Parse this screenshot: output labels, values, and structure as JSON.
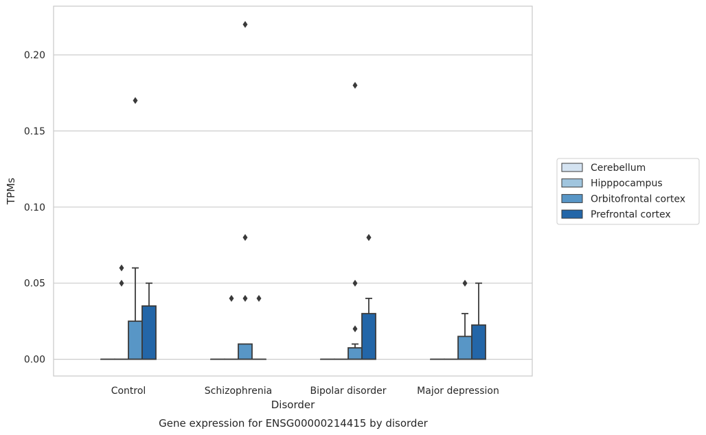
{
  "chart_data": {
    "type": "box",
    "caption": "Gene expression for ENSG00000214415 by disorder",
    "xlabel": "Disorder",
    "ylabel": "TPMs",
    "ylim": [
      -0.011,
      0.232
    ],
    "yticks": [
      0.0,
      0.05,
      0.1,
      0.15,
      0.2
    ],
    "ytick_labels": [
      "0.00",
      "0.05",
      "0.10",
      "0.15",
      "0.20"
    ],
    "grid": "horizontal",
    "legend_position": "right",
    "categories": [
      "Control",
      "Schizophrenia",
      "Bipolar disorder",
      "Major depression"
    ],
    "series": [
      {
        "name": "Cerebellum",
        "color": "#d4e3f1",
        "boxes": [
          {
            "q1": 0,
            "median": 0,
            "q3": 0,
            "whisker_low": 0,
            "whisker_high": 0,
            "outliers": []
          },
          {
            "q1": 0,
            "median": 0,
            "q3": 0,
            "whisker_low": 0,
            "whisker_high": 0,
            "outliers": []
          },
          {
            "q1": 0,
            "median": 0,
            "q3": 0,
            "whisker_low": 0,
            "whisker_high": 0,
            "outliers": []
          },
          {
            "q1": 0,
            "median": 0,
            "q3": 0,
            "whisker_low": 0,
            "whisker_high": 0,
            "outliers": []
          }
        ]
      },
      {
        "name": "Hipppocampus",
        "color": "#a0c5de",
        "boxes": [
          {
            "q1": 0,
            "median": 0,
            "q3": 0,
            "whisker_low": 0,
            "whisker_high": 0,
            "outliers": [
              0.06,
              0.05
            ]
          },
          {
            "q1": 0,
            "median": 0,
            "q3": 0,
            "whisker_low": 0,
            "whisker_high": 0,
            "outliers": [
              0.04
            ]
          },
          {
            "q1": 0,
            "median": 0,
            "q3": 0,
            "whisker_low": 0,
            "whisker_high": 0,
            "outliers": []
          },
          {
            "q1": 0,
            "median": 0,
            "q3": 0,
            "whisker_low": 0,
            "whisker_high": 0,
            "outliers": []
          }
        ]
      },
      {
        "name": "Orbitofrontal cortex",
        "color": "#5896c6",
        "boxes": [
          {
            "q1": 0,
            "median": 0,
            "q3": 0.025,
            "whisker_low": 0,
            "whisker_high": 0.06,
            "outliers": [
              0.17
            ]
          },
          {
            "q1": 0,
            "median": 0,
            "q3": 0.01,
            "whisker_low": 0,
            "whisker_high": 0.01,
            "outliers": [
              0.22,
              0.08,
              0.04
            ]
          },
          {
            "q1": 0,
            "median": 0,
            "q3": 0.0075,
            "whisker_low": 0,
            "whisker_high": 0.01,
            "outliers": [
              0.18,
              0.05,
              0.02
            ]
          },
          {
            "q1": 0,
            "median": 0,
            "q3": 0.015,
            "whisker_low": 0,
            "whisker_high": 0.03,
            "outliers": [
              0.05
            ]
          }
        ]
      },
      {
        "name": "Prefrontal cortex",
        "color": "#2366a8",
        "boxes": [
          {
            "q1": 0,
            "median": 0,
            "q3": 0.035,
            "whisker_low": 0,
            "whisker_high": 0.05,
            "outliers": []
          },
          {
            "q1": 0,
            "median": 0,
            "q3": 0,
            "whisker_low": 0,
            "whisker_high": 0,
            "outliers": [
              0.04
            ]
          },
          {
            "q1": 0,
            "median": 0,
            "q3": 0.03,
            "whisker_low": 0,
            "whisker_high": 0.04,
            "outliers": [
              0.08,
              0.08
            ]
          },
          {
            "q1": 0,
            "median": 0,
            "q3": 0.0225,
            "whisker_low": 0,
            "whisker_high": 0.05,
            "outliers": []
          }
        ]
      }
    ]
  }
}
